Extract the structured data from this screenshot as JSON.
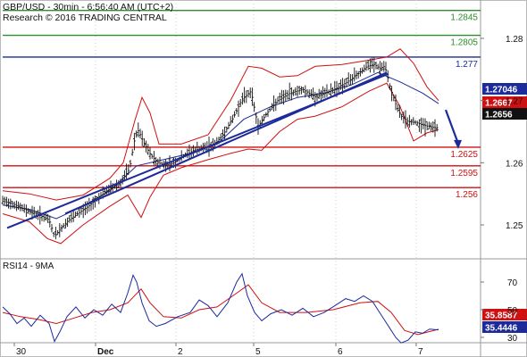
{
  "header": {
    "title": "GBP/USD - 30min - 6:56:40 AM (UTC+2)",
    "subtitle": "Research © 2016 TRADING CENTRAL"
  },
  "chart_data": [
    {
      "type": "candlestick",
      "instrument": "GBP/USD",
      "timeframe": "30min",
      "x_ticks": [
        "30",
        "Dec",
        "2",
        "5",
        "6",
        "7"
      ],
      "y_ticks": [
        "1.28",
        "1.27",
        "1.26",
        "1.25"
      ],
      "ylim": [
        1.2395,
        1.2875
      ],
      "price_path": [
        [
          0,
          1.2538
        ],
        [
          10,
          1.2535
        ],
        [
          20,
          1.2528
        ],
        [
          30,
          1.2522
        ],
        [
          42,
          1.2515
        ],
        [
          52,
          1.2508
        ],
        [
          58,
          1.2482
        ],
        [
          64,
          1.2492
        ],
        [
          72,
          1.2505
        ],
        [
          84,
          1.2518
        ],
        [
          96,
          1.253
        ],
        [
          108,
          1.2545
        ],
        [
          120,
          1.2558
        ],
        [
          132,
          1.2568
        ],
        [
          142,
          1.259
        ],
        [
          148,
          1.264
        ],
        [
          152,
          1.2652
        ],
        [
          158,
          1.2632
        ],
        [
          166,
          1.2612
        ],
        [
          174,
          1.26
        ],
        [
          182,
          1.2596
        ],
        [
          192,
          1.26
        ],
        [
          202,
          1.261
        ],
        [
          214,
          1.262
        ],
        [
          226,
          1.2624
        ],
        [
          238,
          1.263
        ],
        [
          248,
          1.2648
        ],
        [
          258,
          1.2672
        ],
        [
          268,
          1.2702
        ],
        [
          278,
          1.2715
        ],
        [
          286,
          1.2658
        ],
        [
          296,
          1.268
        ],
        [
          308,
          1.27
        ],
        [
          322,
          1.2712
        ],
        [
          336,
          1.2718
        ],
        [
          350,
          1.2706
        ],
        [
          362,
          1.2712
        ],
        [
          374,
          1.272
        ],
        [
          386,
          1.273
        ],
        [
          398,
          1.2743
        ],
        [
          408,
          1.2755
        ],
        [
          416,
          1.2758
        ],
        [
          422,
          1.2752
        ],
        [
          428,
          1.2755
        ],
        [
          434,
          1.272
        ],
        [
          440,
          1.2695
        ],
        [
          446,
          1.2675
        ],
        [
          454,
          1.2666
        ],
        [
          462,
          1.2665
        ],
        [
          472,
          1.266
        ],
        [
          482,
          1.2657
        ],
        [
          488,
          1.2656
        ]
      ],
      "moving_average": [
        [
          0,
          1.2532
        ],
        [
          30,
          1.2525
        ],
        [
          60,
          1.251
        ],
        [
          90,
          1.253
        ],
        [
          120,
          1.2555
        ],
        [
          150,
          1.2595
        ],
        [
          180,
          1.2605
        ],
        [
          210,
          1.2615
        ],
        [
          240,
          1.263
        ],
        [
          270,
          1.267
        ],
        [
          300,
          1.269
        ],
        [
          330,
          1.2705
        ],
        [
          360,
          1.2712
        ],
        [
          390,
          1.2725
        ],
        [
          420,
          1.2745
        ],
        [
          445,
          1.273
        ],
        [
          470,
          1.2712
        ],
        [
          488,
          1.2695
        ]
      ],
      "bollinger_upper": [
        [
          0,
          1.2555
        ],
        [
          30,
          1.255
        ],
        [
          60,
          1.254
        ],
        [
          90,
          1.2548
        ],
        [
          120,
          1.2575
        ],
        [
          135,
          1.26
        ],
        [
          148,
          1.2668
        ],
        [
          156,
          1.2705
        ],
        [
          165,
          1.268
        ],
        [
          175,
          1.263
        ],
        [
          200,
          1.263
        ],
        [
          230,
          1.2645
        ],
        [
          255,
          1.27
        ],
        [
          275,
          1.2755
        ],
        [
          290,
          1.2752
        ],
        [
          310,
          1.2738
        ],
        [
          330,
          1.274
        ],
        [
          350,
          1.2755
        ],
        [
          380,
          1.2758
        ],
        [
          410,
          1.2765
        ],
        [
          430,
          1.277
        ],
        [
          445,
          1.2783
        ],
        [
          460,
          1.276
        ],
        [
          475,
          1.2722
        ],
        [
          488,
          1.27
        ]
      ],
      "bollinger_lower": [
        [
          0,
          1.2518
        ],
        [
          30,
          1.2505
        ],
        [
          50,
          1.2478
        ],
        [
          65,
          1.247
        ],
        [
          90,
          1.25
        ],
        [
          120,
          1.253
        ],
        [
          140,
          1.2548
        ],
        [
          155,
          1.2512
        ],
        [
          165,
          1.2545
        ],
        [
          180,
          1.258
        ],
        [
          200,
          1.2592
        ],
        [
          230,
          1.2605
        ],
        [
          255,
          1.2615
        ],
        [
          275,
          1.2622
        ],
        [
          290,
          1.262
        ],
        [
          310,
          1.265
        ],
        [
          330,
          1.267
        ],
        [
          350,
          1.2675
        ],
        [
          380,
          1.269
        ],
        [
          410,
          1.2715
        ],
        [
          430,
          1.2728
        ],
        [
          445,
          1.269
        ],
        [
          460,
          1.2635
        ],
        [
          475,
          1.2648
        ],
        [
          488,
          1.2653
        ]
      ],
      "trendlines": [
        {
          "from": [
            5,
            1.2495
          ],
          "to": [
            432,
            1.2743
          ],
          "color": "#1c2a9a"
        },
        {
          "from": [
            70,
            1.2518
          ],
          "to": [
            430,
            1.2745
          ],
          "color": "#1c2a9a"
        }
      ],
      "levels": [
        {
          "value": 1.2845,
          "label": "1.2845",
          "color": "#2e8b2e"
        },
        {
          "value": 1.2805,
          "label": "1.2805",
          "color": "#2e8b2e"
        },
        {
          "value": 1.277,
          "label": "1.277",
          "color": "#1c2a9a"
        },
        {
          "value": 1.2625,
          "label": "1.2625",
          "color": "#d01010"
        },
        {
          "value": 1.2595,
          "label": "1.2595",
          "color": "#d01010"
        },
        {
          "value": 1.256,
          "label": "1.256",
          "color": "#d01010"
        }
      ],
      "forecast_arrow": {
        "from": [
          496,
          1.2685
        ],
        "to": [
          510,
          1.2625
        ],
        "color": "#1c2a9a"
      },
      "price_markers": [
        {
          "value": 1.27046,
          "label": "1.27046",
          "bg": "#1c2a9a",
          "fg": "#ffffff"
        },
        {
          "value": 1.2667,
          "label": "1.2667",
          "bg": "#d01010",
          "fg": "#ffffff"
        },
        {
          "value": 1.2656,
          "label": "1.2656",
          "bg": "#111111",
          "fg": "#ffffff"
        }
      ]
    },
    {
      "type": "line",
      "title": "RSI14 - 9MA",
      "y_ticks": [
        "70",
        "50",
        "30"
      ],
      "ylim": [
        18,
        88
      ],
      "rsi": [
        [
          0,
          52
        ],
        [
          8,
          47
        ],
        [
          16,
          40
        ],
        [
          24,
          44
        ],
        [
          32,
          38
        ],
        [
          42,
          46
        ],
        [
          52,
          40
        ],
        [
          58,
          27
        ],
        [
          64,
          34
        ],
        [
          72,
          45
        ],
        [
          82,
          52
        ],
        [
          92,
          44
        ],
        [
          102,
          50
        ],
        [
          112,
          46
        ],
        [
          122,
          54
        ],
        [
          132,
          48
        ],
        [
          140,
          62
        ],
        [
          146,
          75
        ],
        [
          150,
          70
        ],
        [
          156,
          55
        ],
        [
          164,
          42
        ],
        [
          172,
          38
        ],
        [
          182,
          40
        ],
        [
          196,
          45
        ],
        [
          210,
          48
        ],
        [
          220,
          57
        ],
        [
          230,
          53
        ],
        [
          240,
          45
        ],
        [
          252,
          55
        ],
        [
          262,
          70
        ],
        [
          268,
          76
        ],
        [
          274,
          60
        ],
        [
          282,
          48
        ],
        [
          290,
          42
        ],
        [
          300,
          47
        ],
        [
          312,
          50
        ],
        [
          324,
          46
        ],
        [
          336,
          51
        ],
        [
          348,
          45
        ],
        [
          360,
          48
        ],
        [
          372,
          53
        ],
        [
          384,
          58
        ],
        [
          394,
          56
        ],
        [
          404,
          60
        ],
        [
          414,
          56
        ],
        [
          422,
          48
        ],
        [
          428,
          42
        ],
        [
          434,
          36
        ],
        [
          440,
          30
        ],
        [
          446,
          26
        ],
        [
          454,
          28
        ],
        [
          462,
          34
        ],
        [
          470,
          33
        ],
        [
          478,
          36
        ],
        [
          488,
          35.4
        ]
      ],
      "ma": [
        [
          0,
          48
        ],
        [
          20,
          45
        ],
        [
          40,
          43
        ],
        [
          60,
          40
        ],
        [
          80,
          44
        ],
        [
          100,
          48
        ],
        [
          120,
          50
        ],
        [
          140,
          55
        ],
        [
          155,
          65
        ],
        [
          165,
          55
        ],
        [
          180,
          45
        ],
        [
          200,
          44
        ],
        [
          220,
          50
        ],
        [
          240,
          52
        ],
        [
          262,
          62
        ],
        [
          275,
          68
        ],
        [
          290,
          55
        ],
        [
          310,
          48
        ],
        [
          340,
          48
        ],
        [
          370,
          50
        ],
        [
          400,
          55
        ],
        [
          420,
          56
        ],
        [
          435,
          48
        ],
        [
          450,
          35
        ],
        [
          465,
          32
        ],
        [
          488,
          35.9
        ]
      ],
      "markers": [
        {
          "value": 35.8587,
          "label": "35.8587",
          "bg": "#d01010",
          "fg": "#ffffff"
        },
        {
          "value": 35.4446,
          "label": "35.4446",
          "bg": "#1c2a9a",
          "fg": "#ffffff"
        }
      ]
    }
  ]
}
